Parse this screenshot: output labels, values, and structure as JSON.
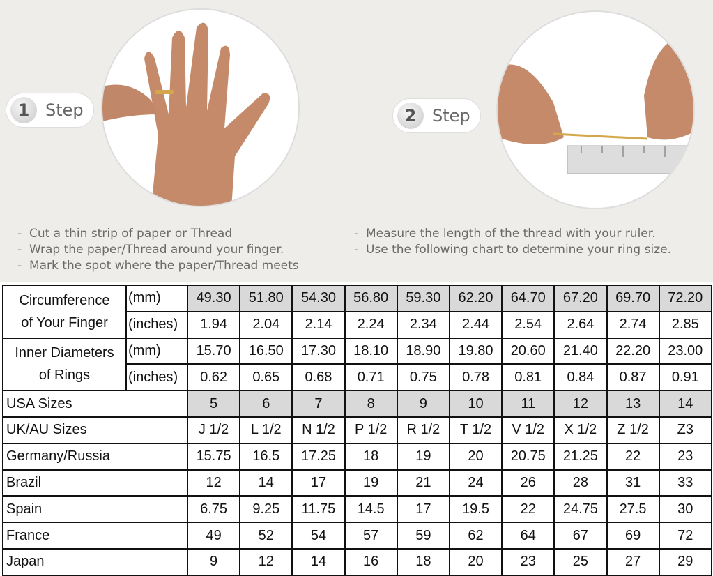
{
  "step1": {
    "number": "1",
    "label": "Step",
    "instructions": [
      "Cut a thin strip of paper or Thread",
      "Wrap the paper/Thread around your finger.",
      "Mark the spot where the paper/Thread meets"
    ]
  },
  "step2": {
    "number": "2",
    "label": "Step",
    "instructions": [
      "Measure the length of the thread with your ruler.",
      "Use the following chart to determine your ring size."
    ]
  },
  "table": {
    "circumference": {
      "label": [
        "Circumference",
        "of Your Finger"
      ],
      "mm_unit": "(mm)",
      "in_unit": "(inches)",
      "mm": [
        "49.30",
        "51.80",
        "54.30",
        "56.80",
        "59.30",
        "62.20",
        "64.70",
        "67.20",
        "69.70",
        "72.20"
      ],
      "inches": [
        "1.94",
        "2.04",
        "2.14",
        "2.24",
        "2.34",
        "2.44",
        "2.54",
        "2.64",
        "2.74",
        "2.85"
      ]
    },
    "inner": {
      "label": [
        "Inner Diameters",
        "of Rings"
      ],
      "mm_unit": "(mm)",
      "in_unit": "(inches)",
      "mm": [
        "15.70",
        "16.50",
        "17.30",
        "18.10",
        "18.90",
        "19.80",
        "20.60",
        "21.40",
        "22.20",
        "23.00"
      ],
      "inches": [
        "0.62",
        "0.65",
        "0.68",
        "0.71",
        "0.75",
        "0.78",
        "0.81",
        "0.84",
        "0.87",
        "0.91"
      ]
    },
    "rows": [
      {
        "label": "USA Sizes",
        "values": [
          "5",
          "6",
          "7",
          "8",
          "9",
          "10",
          "11",
          "12",
          "13",
          "14"
        ]
      },
      {
        "label": "UK/AU Sizes",
        "values": [
          "J 1/2",
          "L 1/2",
          "N 1/2",
          "P 1/2",
          "R 1/2",
          "T 1/2",
          "V 1/2",
          "X 1/2",
          "Z 1/2",
          "Z3"
        ]
      },
      {
        "label": "Germany/Russia",
        "values": [
          "15.75",
          "16.5",
          "17.25",
          "18",
          "19",
          "20",
          "20.75",
          "21.25",
          "22",
          "23"
        ]
      },
      {
        "label": "Brazil",
        "values": [
          "12",
          "14",
          "17",
          "19",
          "21",
          "24",
          "26",
          "28",
          "31",
          "33"
        ]
      },
      {
        "label": "Spain",
        "values": [
          "6.75",
          "9.25",
          "11.75",
          "14.5",
          "17",
          "19.5",
          "22",
          "24.75",
          "27.5",
          "30"
        ]
      },
      {
        "label": "France",
        "values": [
          "49",
          "52",
          "54",
          "57",
          "59",
          "62",
          "64",
          "67",
          "69",
          "72"
        ]
      },
      {
        "label": "Japan",
        "values": [
          "9",
          "12",
          "14",
          "16",
          "18",
          "20",
          "23",
          "25",
          "27",
          "29"
        ]
      }
    ]
  },
  "colors": {
    "shade": "#d9d9d9",
    "background": "#efedea"
  }
}
